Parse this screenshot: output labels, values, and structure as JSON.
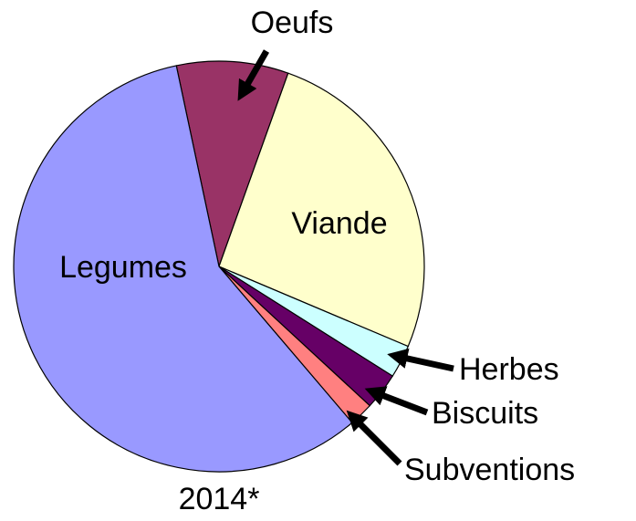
{
  "chart_data": {
    "type": "pie",
    "title": "2014*",
    "categories": [
      "Oeufs",
      "Viande",
      "Herbes",
      "Biscuits",
      "Subventions",
      "Legumes"
    ],
    "values": [
      8.8,
      25.9,
      2.6,
      2.9,
      1.9,
      57.9
    ],
    "colors": [
      "#993366",
      "#ffffcc",
      "#ccffff",
      "#660066",
      "#ff8080",
      "#9999ff"
    ]
  }
}
